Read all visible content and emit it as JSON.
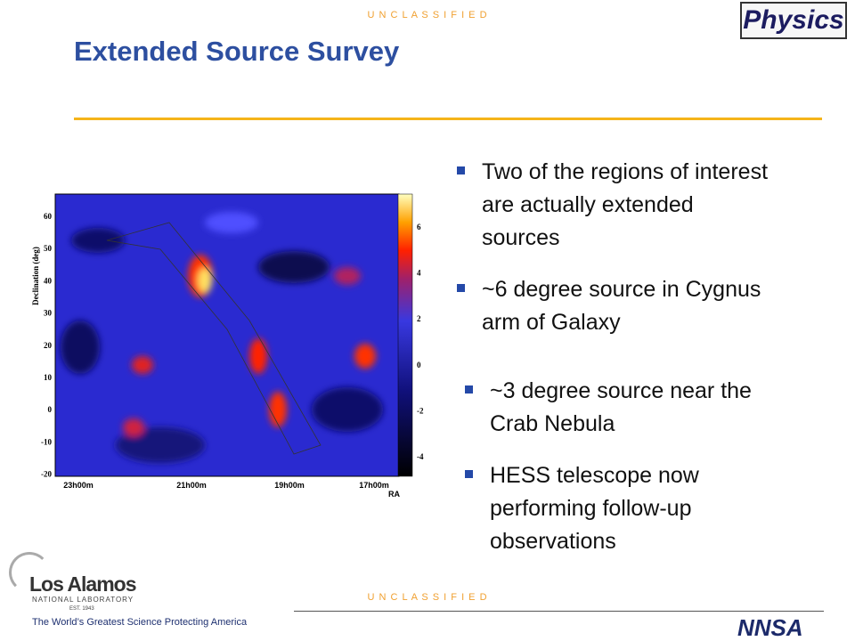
{
  "header": {
    "classification": "U N C L A S S I F I E D",
    "title": "Extended Source Survey",
    "logo": "Physics"
  },
  "figure": {
    "y_axis_label": "Declination (deg)",
    "y_ticks": [
      "60",
      "50",
      "40",
      "30",
      "20",
      "10",
      "0",
      "-10",
      "-20"
    ],
    "x_ticks": [
      "23h00m",
      "21h00m",
      "19h00m",
      "17h00m"
    ],
    "x_axis_label": "RA",
    "colorbar_ticks": [
      "6",
      "4",
      "2",
      "0",
      "-2",
      "-4"
    ]
  },
  "bullets": {
    "group1": [
      "Two of the regions of interest are actually extended sources",
      "~6 degree source in Cygnus arm of Galaxy"
    ],
    "group2": [
      "~3 degree source near the Crab Nebula",
      "HESS telescope now performing follow-up observations"
    ]
  },
  "footer": {
    "classification": "U N C L A S S I F I E D",
    "org": "Los Alamos",
    "org_sub": "NATIONAL LABORATORY",
    "est": "EST. 1943",
    "tagline": "The World’s Greatest Science Protecting America",
    "agency": "NNSA"
  }
}
